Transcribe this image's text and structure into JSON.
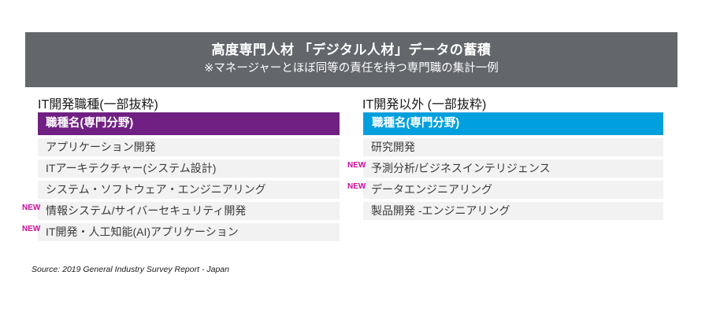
{
  "banner": {
    "title": "高度専門人材 「デジタル人材」データの蓄積",
    "subtitle": "※マネージャーとほぼ同等の責任を持つ専門職の集計一例"
  },
  "left_table": {
    "section_title": "IT開発職種(一部抜粋)",
    "header": "職種名(専門分野)",
    "header_color": "#702082",
    "rows": [
      {
        "label": "アプリケーション開発"
      },
      {
        "label": "ITアーキテクチャー(システム設計)"
      },
      {
        "label": "システム・ソフトウェア・エンジニアリング"
      },
      {
        "label": "情報システム/サイバーセキュリティ開発",
        "badge": "NEW"
      },
      {
        "label": "IT開発・人工知能(AI)アプリケーション",
        "badge": "NEW"
      }
    ]
  },
  "right_table": {
    "section_title": "IT開発以外 (一部抜粋)",
    "header": "職種名(専門分野)",
    "header_color": "#00A0DF",
    "rows": [
      {
        "label": "研究開発"
      },
      {
        "label": "予測分析/ビジネスインテリジェンス",
        "badge": "NEW"
      },
      {
        "label": "データエンジニアリング",
        "badge": "NEW"
      },
      {
        "label": "製品開発 -エンジニアリング"
      }
    ]
  },
  "colors": {
    "banner_bg": "#63666B",
    "left_header": "#702082",
    "right_header": "#00A0DF",
    "new_badge": "#CB0C9B",
    "row_bg": "#F2F2F2"
  },
  "source": "Source: 2019 General Industry Survey Report - Japan"
}
